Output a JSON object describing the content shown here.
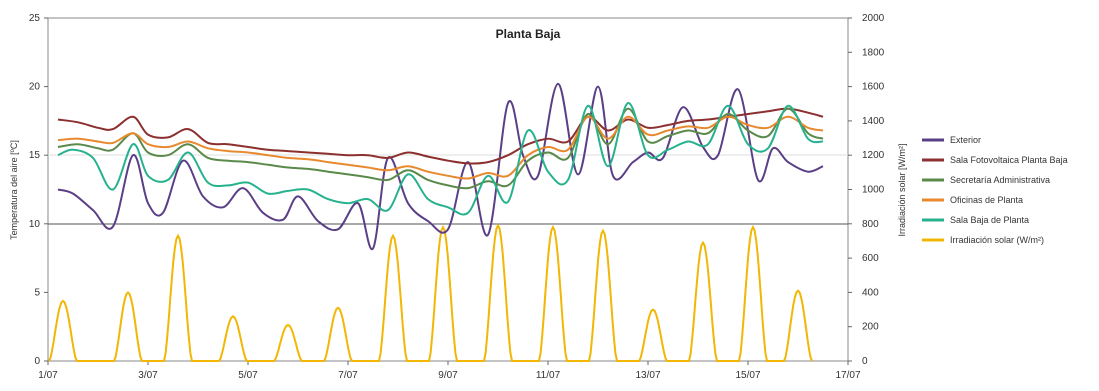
{
  "chart_data": {
    "type": "line",
    "title": "Planta Baja",
    "ylabel_left": "Temperatura del aire [ºC]",
    "ylabel_right": "Irradiación solar [W/m²]",
    "xlabel": "",
    "x_ticks": [
      "1/07",
      "3/07",
      "5/07",
      "7/07",
      "9/07",
      "11/07",
      "13/07",
      "15/07",
      "17/07"
    ],
    "y_left_ticks": [
      "0",
      "5",
      "10",
      "15",
      "20",
      "25"
    ],
    "y_right_ticks": [
      "0",
      "200",
      "400",
      "600",
      "800",
      "1000",
      "1200",
      "1400",
      "1600",
      "1800",
      "2000"
    ],
    "xlim": [
      0,
      16
    ],
    "ylim_left": [
      0,
      25
    ],
    "ylim_right": [
      0,
      2000
    ],
    "grid": "horizontal at 10 and 15",
    "legend_position": "right",
    "series": [
      {
        "name": "Exterior",
        "color": "#5b3f86",
        "axis": "left",
        "x": [
          0.2,
          0.5,
          0.9,
          1.3,
          1.7,
          2.0,
          2.3,
          2.7,
          3.1,
          3.5,
          3.9,
          4.3,
          4.7,
          5.0,
          5.4,
          5.8,
          6.2,
          6.5,
          6.8,
          7.2,
          7.6,
          8.0,
          8.4,
          8.8,
          9.2,
          9.5,
          9.8,
          10.2,
          10.6,
          11.0,
          11.3,
          11.7,
          12.0,
          12.3,
          12.7,
          13.1,
          13.4,
          13.8,
          14.2,
          14.5,
          14.8,
          15.2,
          15.5
        ],
        "y": [
          12.5,
          12.2,
          11.0,
          9.8,
          15.0,
          11.5,
          10.8,
          14.6,
          12.0,
          11.2,
          12.6,
          10.8,
          10.3,
          12.0,
          10.2,
          9.6,
          11.5,
          8.2,
          14.8,
          11.5,
          10.2,
          9.6,
          14.5,
          9.2,
          18.8,
          15.0,
          13.5,
          20.2,
          13.6,
          20.0,
          13.5,
          14.5,
          15.2,
          14.8,
          18.5,
          15.6,
          15.0,
          19.8,
          13.2,
          15.5,
          14.5,
          13.8,
          14.2
        ]
      },
      {
        "name": "Sala Fotovoltaica Planta Baja",
        "color": "#8c2f2f",
        "axis": "left",
        "x": [
          0.2,
          0.6,
          1.0,
          1.3,
          1.7,
          2.0,
          2.4,
          2.8,
          3.2,
          3.6,
          4.0,
          4.4,
          4.8,
          5.2,
          5.6,
          6.0,
          6.4,
          6.8,
          7.2,
          7.6,
          8.0,
          8.4,
          8.8,
          9.2,
          9.6,
          10.0,
          10.4,
          10.8,
          11.2,
          11.6,
          12.0,
          12.4,
          12.8,
          13.2,
          13.6,
          14.0,
          14.4,
          14.8,
          15.2,
          15.5
        ],
        "y": [
          17.6,
          17.4,
          17.0,
          16.9,
          17.8,
          16.5,
          16.3,
          16.9,
          15.9,
          15.8,
          15.6,
          15.4,
          15.3,
          15.2,
          15.1,
          15.0,
          15.0,
          14.8,
          15.2,
          14.9,
          14.6,
          14.4,
          14.5,
          15.0,
          15.8,
          16.2,
          16.0,
          17.8,
          16.8,
          17.6,
          17.0,
          17.2,
          17.5,
          17.6,
          17.8,
          18.0,
          18.2,
          18.4,
          18.1,
          17.8
        ]
      },
      {
        "name": "Secretaría Administrativa",
        "color": "#5a8a4a",
        "axis": "left",
        "x": [
          0.2,
          0.6,
          1.0,
          1.3,
          1.7,
          2.0,
          2.4,
          2.8,
          3.2,
          3.6,
          4.0,
          4.4,
          4.8,
          5.2,
          5.6,
          6.0,
          6.4,
          6.8,
          7.2,
          7.6,
          8.0,
          8.4,
          8.8,
          9.2,
          9.6,
          10.0,
          10.4,
          10.8,
          11.2,
          11.6,
          12.0,
          12.4,
          12.8,
          13.2,
          13.6,
          14.0,
          14.4,
          14.8,
          15.2,
          15.5
        ],
        "y": [
          15.6,
          15.8,
          15.5,
          15.4,
          16.6,
          15.2,
          15.0,
          15.8,
          14.8,
          14.6,
          14.5,
          14.3,
          14.1,
          14.0,
          13.8,
          13.6,
          13.4,
          13.2,
          13.9,
          13.2,
          12.8,
          12.6,
          13.1,
          12.8,
          14.6,
          15.2,
          14.8,
          18.0,
          15.8,
          18.4,
          16.0,
          16.4,
          16.8,
          16.6,
          18.0,
          16.8,
          16.4,
          18.4,
          16.6,
          16.2
        ]
      },
      {
        "name": "Oficinas de Planta",
        "color": "#e8892e",
        "axis": "left",
        "x": [
          0.2,
          0.6,
          1.0,
          1.3,
          1.7,
          2.0,
          2.4,
          2.8,
          3.2,
          3.6,
          4.0,
          4.4,
          4.8,
          5.2,
          5.6,
          6.0,
          6.4,
          6.8,
          7.2,
          7.6,
          8.0,
          8.4,
          8.8,
          9.2,
          9.6,
          10.0,
          10.4,
          10.8,
          11.2,
          11.6,
          12.0,
          12.4,
          12.8,
          13.2,
          13.6,
          14.0,
          14.4,
          14.8,
          15.2,
          15.5
        ],
        "y": [
          16.1,
          16.2,
          16.0,
          15.9,
          16.6,
          15.8,
          15.6,
          16.0,
          15.5,
          15.3,
          15.2,
          15.0,
          14.8,
          14.7,
          14.5,
          14.3,
          14.1,
          13.9,
          14.2,
          13.8,
          13.5,
          13.3,
          13.7,
          13.5,
          15.0,
          15.6,
          15.4,
          17.8,
          16.2,
          17.8,
          16.5,
          16.8,
          17.1,
          17.0,
          17.8,
          17.2,
          17.0,
          17.8,
          17.0,
          16.8
        ]
      },
      {
        "name": "Sala Baja de Planta",
        "color": "#27b28e",
        "axis": "left",
        "x": [
          0.2,
          0.5,
          0.9,
          1.3,
          1.7,
          2.0,
          2.4,
          2.8,
          3.2,
          3.6,
          4.0,
          4.4,
          4.8,
          5.2,
          5.6,
          6.0,
          6.4,
          6.8,
          7.2,
          7.6,
          8.0,
          8.4,
          8.8,
          9.2,
          9.6,
          10.0,
          10.4,
          10.8,
          11.2,
          11.6,
          12.0,
          12.4,
          12.8,
          13.2,
          13.6,
          14.0,
          14.4,
          14.8,
          15.2,
          15.5
        ],
        "y": [
          15.0,
          15.4,
          14.8,
          12.5,
          15.8,
          13.5,
          13.2,
          15.2,
          13.0,
          12.8,
          13.0,
          12.2,
          12.4,
          12.5,
          11.8,
          11.5,
          11.8,
          11.0,
          13.6,
          11.8,
          11.2,
          10.8,
          13.5,
          11.6,
          16.8,
          13.8,
          13.2,
          18.6,
          14.2,
          18.8,
          15.0,
          15.4,
          16.0,
          15.8,
          18.6,
          15.8,
          15.5,
          18.6,
          16.2,
          16.0
        ]
      },
      {
        "name": "Irradiación solar (W/m²)",
        "color": "#f2b705",
        "axis": "right",
        "peaks": [
          {
            "x": 0.3,
            "y": 350
          },
          {
            "x": 1.6,
            "y": 400
          },
          {
            "x": 2.6,
            "y": 730
          },
          {
            "x": 3.7,
            "y": 260
          },
          {
            "x": 4.8,
            "y": 210
          },
          {
            "x": 5.8,
            "y": 310
          },
          {
            "x": 6.9,
            "y": 730
          },
          {
            "x": 7.9,
            "y": 780
          },
          {
            "x": 9.0,
            "y": 790
          },
          {
            "x": 10.1,
            "y": 780
          },
          {
            "x": 11.1,
            "y": 760
          },
          {
            "x": 12.1,
            "y": 300
          },
          {
            "x": 13.1,
            "y": 690
          },
          {
            "x": 14.1,
            "y": 780
          },
          {
            "x": 15.0,
            "y": 410
          }
        ]
      }
    ]
  }
}
